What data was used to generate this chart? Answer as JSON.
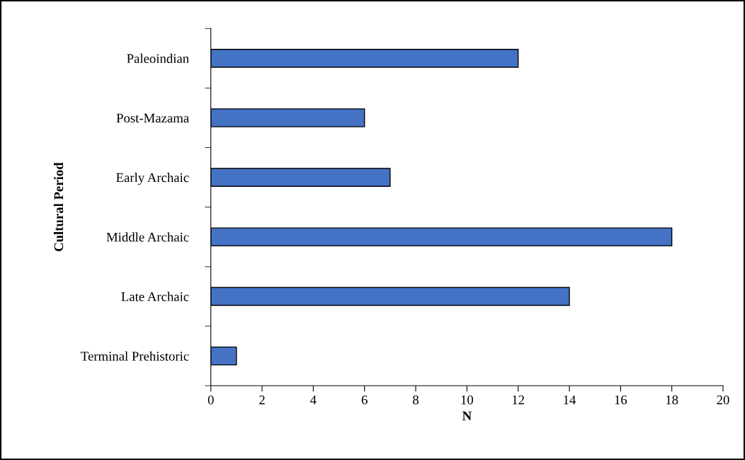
{
  "chart_data": {
    "type": "bar",
    "orientation": "horizontal",
    "xlabel": "N",
    "ylabel": "Cultural Period",
    "categories": [
      "Paleoindian",
      "Post-Mazama",
      "Early Archaic",
      "Middle Archaic",
      "Late Archaic",
      "Terminal Prehistoric"
    ],
    "values": [
      12,
      6,
      7,
      18,
      14,
      1
    ],
    "color": "#4472c4",
    "xlim": [
      0,
      20
    ],
    "xticks": [
      0,
      2,
      4,
      6,
      8,
      10,
      12,
      14,
      16,
      18,
      20
    ],
    "grid": false,
    "legend": false
  }
}
